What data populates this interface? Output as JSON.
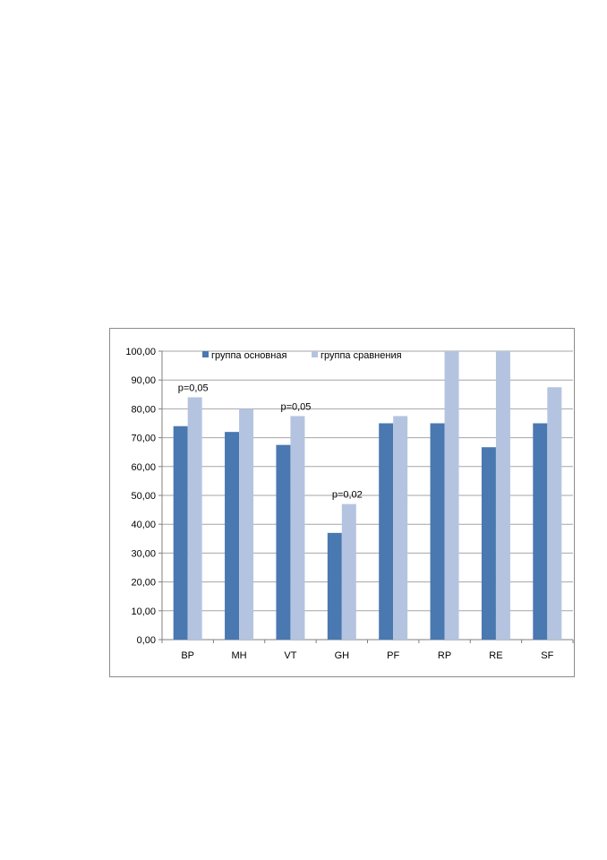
{
  "chart_data": {
    "type": "bar",
    "categories": [
      "BP",
      "MH",
      "VT",
      "GH",
      "PF",
      "RP",
      "RE",
      "SF"
    ],
    "series": [
      {
        "name": "группа основная",
        "values": [
          74,
          72,
          67.5,
          37,
          75,
          75,
          66.7,
          75
        ],
        "color": "#4A78B0"
      },
      {
        "name": "группа сравнения",
        "values": [
          84,
          80,
          77.5,
          47,
          77.5,
          100,
          100,
          87.5
        ],
        "color": "#B4C4E0"
      }
    ],
    "ylim": [
      0,
      100
    ],
    "yticks": [
      "0,00",
      "10,00",
      "20,00",
      "30,00",
      "40,00",
      "50,00",
      "60,00",
      "70,00",
      "80,00",
      "90,00",
      "100,00"
    ],
    "grid": true,
    "legend_position": "top",
    "annotations": [
      {
        "category": "BP",
        "text": "p=0,05"
      },
      {
        "category": "VT",
        "text": "p=0,05"
      },
      {
        "category": "GH",
        "text": "p=0,02"
      }
    ]
  }
}
